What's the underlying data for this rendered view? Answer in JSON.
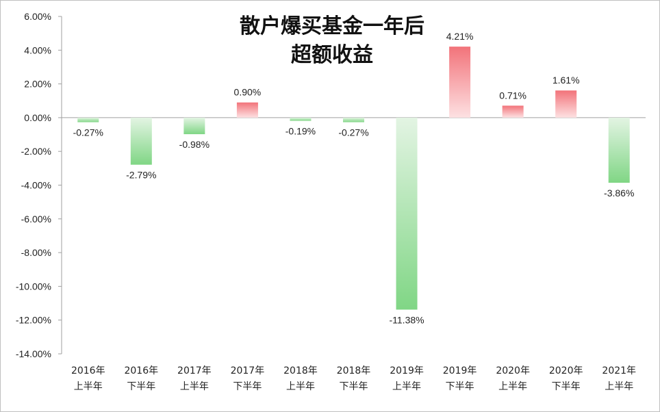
{
  "chart_data": {
    "type": "bar",
    "title_lines": [
      "散户爆买基金一年后",
      "超额收益"
    ],
    "categories": [
      [
        "2016年",
        "上半年"
      ],
      [
        "2016年",
        "下半年"
      ],
      [
        "2017年",
        "上半年"
      ],
      [
        "2017年",
        "下半年"
      ],
      [
        "2018年",
        "上半年"
      ],
      [
        "2018年",
        "下半年"
      ],
      [
        "2019年",
        "上半年"
      ],
      [
        "2019年",
        "下半年"
      ],
      [
        "2020年",
        "上半年"
      ],
      [
        "2020年",
        "下半年"
      ],
      [
        "2021年",
        "上半年"
      ]
    ],
    "values": [
      -0.27,
      -2.79,
      -0.98,
      0.9,
      -0.19,
      -0.27,
      -11.38,
      4.21,
      0.71,
      1.61,
      -3.86
    ],
    "data_labels": [
      "-0.27%",
      "-2.79%",
      "-0.98%",
      "0.90%",
      "-0.19%",
      "-0.27%",
      "-11.38%",
      "4.21%",
      "0.71%",
      "1.61%",
      "-3.86%"
    ],
    "y_ticks": [
      6,
      4,
      2,
      0,
      -2,
      -4,
      -6,
      -8,
      -10,
      -12,
      -14
    ],
    "y_tick_labels": [
      "6.00%",
      "4.00%",
      "2.00%",
      "0.00%",
      "-2.00%",
      "-4.00%",
      "-6.00%",
      "-8.00%",
      "-10.00%",
      "-12.00%",
      "-14.00%"
    ],
    "ylim": [
      -14,
      6
    ],
    "xlabel": "",
    "ylabel": "",
    "grid": false,
    "legend": "none",
    "colors": {
      "positive_top": "#f2737a",
      "positive_bottom": "#fde1e2",
      "negative_top": "#e3f4e3",
      "negative_bottom": "#80d685",
      "axis": "#9f9f9f"
    }
  }
}
